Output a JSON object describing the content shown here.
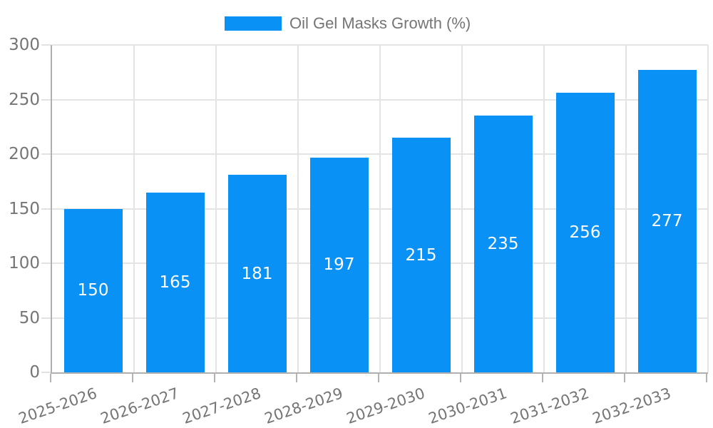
{
  "chart_data": {
    "type": "bar",
    "title": "Oil Gel Masks Growth (%)",
    "legend": {
      "position": "top",
      "label": "Oil Gel Masks Growth (%)"
    },
    "categories": [
      "2025-2026",
      "2026-2027",
      "2027-2028",
      "2028-2029",
      "2029-2030",
      "2030-2031",
      "2031-2032",
      "2032-2033"
    ],
    "series": [
      {
        "name": "Oil Gel Masks Growth (%)",
        "values": [
          150,
          165,
          181,
          197,
          215,
          235,
          256,
          277
        ]
      }
    ],
    "xlabel": "",
    "ylabel": "",
    "ylim": [
      0,
      300
    ],
    "yticks": [
      0,
      50,
      100,
      150,
      200,
      250,
      300
    ],
    "grid": true,
    "value_labels_inside_bars": true,
    "colors": {
      "bar": "#0991f5",
      "value_label": "#ffffff",
      "axis_text": "#757575",
      "axis_line": "#b0b0b0",
      "gridline": "#e4e4e4",
      "background": "#ffffff"
    }
  }
}
